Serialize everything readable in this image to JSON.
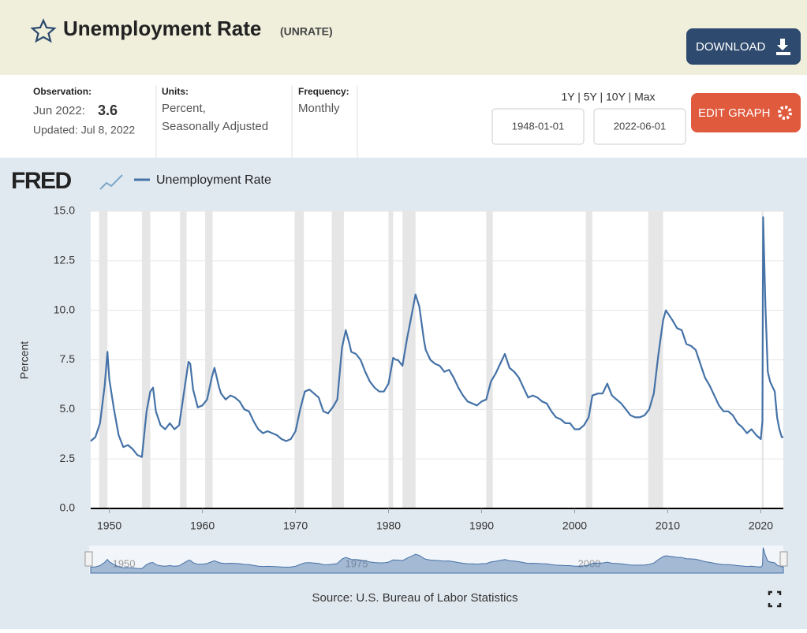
{
  "header": {
    "title": "Unemployment Rate",
    "series_id": "(UNRATE)",
    "download": "DOWNLOAD"
  },
  "info": {
    "observation_label": "Observation:",
    "observation_date": "Jun 2022:",
    "observation_value": 3.6,
    "updated": "Updated: Jul 8, 2022",
    "units_label": "Units:",
    "units": [
      "Percent,",
      "Seasonally Adjusted"
    ],
    "frequency_label": "Frequency:",
    "frequency": "Monthly"
  },
  "controls": {
    "ranges": "1Y | 5Y | 10Y | Max",
    "start": "1948-01-01",
    "end": "2022-06-01",
    "edit": "EDIT GRAPH"
  },
  "chart_data": {
    "type": "line",
    "brand": "FRED",
    "y_label": "Percent",
    "source": "Source: U.S. Bureau of Labor Statistics",
    "x": [
      1948.0,
      1948.5,
      1949.0,
      1949.5,
      1949.8,
      1950.0,
      1950.5,
      1951.0,
      1951.5,
      1952.0,
      1952.5,
      1953.0,
      1953.5,
      1954.0,
      1954.4,
      1954.7,
      1955.0,
      1955.5,
      1956.0,
      1956.5,
      1957.0,
      1957.5,
      1958.0,
      1958.5,
      1958.7,
      1959.0,
      1959.5,
      1960.0,
      1960.5,
      1961.0,
      1961.3,
      1961.8,
      1962.0,
      1962.5,
      1963.0,
      1963.5,
      1964.0,
      1964.5,
      1965.0,
      1965.5,
      1966.0,
      1966.5,
      1967.0,
      1967.5,
      1968.0,
      1968.5,
      1969.0,
      1969.5,
      1970.0,
      1970.5,
      1971.0,
      1971.5,
      1972.0,
      1972.5,
      1973.0,
      1973.5,
      1974.0,
      1974.5,
      1975.0,
      1975.4,
      1975.8,
      1976.0,
      1976.5,
      1977.0,
      1977.5,
      1978.0,
      1978.5,
      1979.0,
      1979.5,
      1980.0,
      1980.5,
      1980.8,
      1981.0,
      1981.5,
      1982.0,
      1982.5,
      1982.9,
      1983.3,
      1983.8,
      1984.0,
      1984.5,
      1985.0,
      1985.5,
      1986.0,
      1986.5,
      1987.0,
      1987.5,
      1988.0,
      1988.5,
      1989.0,
      1989.5,
      1990.0,
      1990.5,
      1991.0,
      1991.5,
      1992.0,
      1992.5,
      1993.0,
      1993.5,
      1994.0,
      1994.5,
      1995.0,
      1995.5,
      1996.0,
      1996.5,
      1997.0,
      1997.5,
      1998.0,
      1998.5,
      1999.0,
      1999.5,
      2000.0,
      2000.5,
      2001.0,
      2001.5,
      2001.9,
      2002.5,
      2003.0,
      2003.5,
      2004.0,
      2004.5,
      2005.0,
      2005.5,
      2006.0,
      2006.5,
      2007.0,
      2007.5,
      2008.0,
      2008.5,
      2009.0,
      2009.5,
      2009.8,
      2010.5,
      2011.0,
      2011.5,
      2012.0,
      2012.5,
      2013.0,
      2013.5,
      2014.0,
      2014.5,
      2015.0,
      2015.5,
      2016.0,
      2016.5,
      2017.0,
      2017.5,
      2018.0,
      2018.5,
      2019.0,
      2019.5,
      2020.0,
      2020.17,
      2020.25,
      2020.5,
      2020.75,
      2021.0,
      2021.5,
      2021.75,
      2022.0,
      2022.25,
      2022.42
    ],
    "series": [
      {
        "name": "Unemployment Rate",
        "color": "#4572a7",
        "values": [
          3.4,
          3.6,
          4.3,
          6.2,
          7.9,
          6.5,
          5.0,
          3.7,
          3.1,
          3.2,
          3.0,
          2.7,
          2.6,
          4.9,
          5.9,
          6.1,
          4.9,
          4.2,
          4.0,
          4.3,
          4.0,
          4.2,
          5.8,
          7.4,
          7.3,
          6.0,
          5.1,
          5.2,
          5.5,
          6.6,
          7.1,
          6.1,
          5.8,
          5.5,
          5.7,
          5.6,
          5.4,
          5.0,
          4.9,
          4.4,
          4.0,
          3.8,
          3.9,
          3.8,
          3.7,
          3.5,
          3.4,
          3.5,
          3.9,
          5.0,
          5.9,
          6.0,
          5.8,
          5.6,
          4.9,
          4.8,
          5.1,
          5.5,
          8.1,
          9.0,
          8.3,
          7.9,
          7.8,
          7.5,
          6.9,
          6.4,
          6.1,
          5.9,
          5.9,
          6.3,
          7.6,
          7.5,
          7.5,
          7.2,
          8.6,
          9.8,
          10.8,
          10.2,
          8.5,
          8.0,
          7.5,
          7.3,
          7.2,
          6.9,
          7.0,
          6.6,
          6.1,
          5.7,
          5.4,
          5.3,
          5.2,
          5.4,
          5.5,
          6.4,
          6.8,
          7.3,
          7.8,
          7.1,
          6.9,
          6.6,
          6.1,
          5.6,
          5.7,
          5.6,
          5.4,
          5.3,
          4.9,
          4.6,
          4.5,
          4.3,
          4.3,
          4.0,
          4.0,
          4.2,
          4.6,
          5.7,
          5.8,
          5.8,
          6.3,
          5.7,
          5.5,
          5.3,
          5.0,
          4.7,
          4.6,
          4.6,
          4.7,
          5.0,
          5.8,
          7.8,
          9.5,
          10.0,
          9.5,
          9.1,
          9.0,
          8.3,
          8.2,
          8.0,
          7.3,
          6.6,
          6.2,
          5.7,
          5.2,
          4.9,
          4.9,
          4.7,
          4.3,
          4.1,
          3.8,
          4.0,
          3.7,
          3.5,
          4.4,
          14.7,
          10.2,
          6.9,
          6.4,
          5.9,
          4.6,
          4.0,
          3.6,
          3.6
        ]
      }
    ],
    "recessions": [
      [
        1948.9,
        1949.8
      ],
      [
        1953.5,
        1954.4
      ],
      [
        1957.6,
        1958.3
      ],
      [
        1960.3,
        1961.1
      ],
      [
        1969.9,
        1970.9
      ],
      [
        1973.9,
        1975.2
      ],
      [
        1980.0,
        1980.5
      ],
      [
        1981.5,
        1982.9
      ],
      [
        1990.5,
        1991.2
      ],
      [
        2001.2,
        2001.9
      ],
      [
        2007.9,
        2009.5
      ],
      [
        2020.1,
        2020.3
      ]
    ],
    "xlim": [
      1948,
      2022.42
    ],
    "xticks": [
      1950,
      1960,
      1970,
      1980,
      1990,
      2000,
      2010,
      2020
    ],
    "ylim": [
      0,
      15
    ],
    "yticks": [
      {
        "value": 0,
        "label": "0.0"
      },
      {
        "value": 2.5,
        "label": "2.5"
      },
      {
        "value": 5,
        "label": "5.0"
      },
      {
        "value": 7.5,
        "label": "7.5"
      },
      {
        "value": 10,
        "label": "10.0"
      },
      {
        "value": 12.5,
        "label": "12.5"
      },
      {
        "value": 15,
        "label": "15.0"
      }
    ],
    "navigator_ticks": [
      1950,
      1975,
      2000
    ],
    "recession_color": "#e6e6e6"
  }
}
